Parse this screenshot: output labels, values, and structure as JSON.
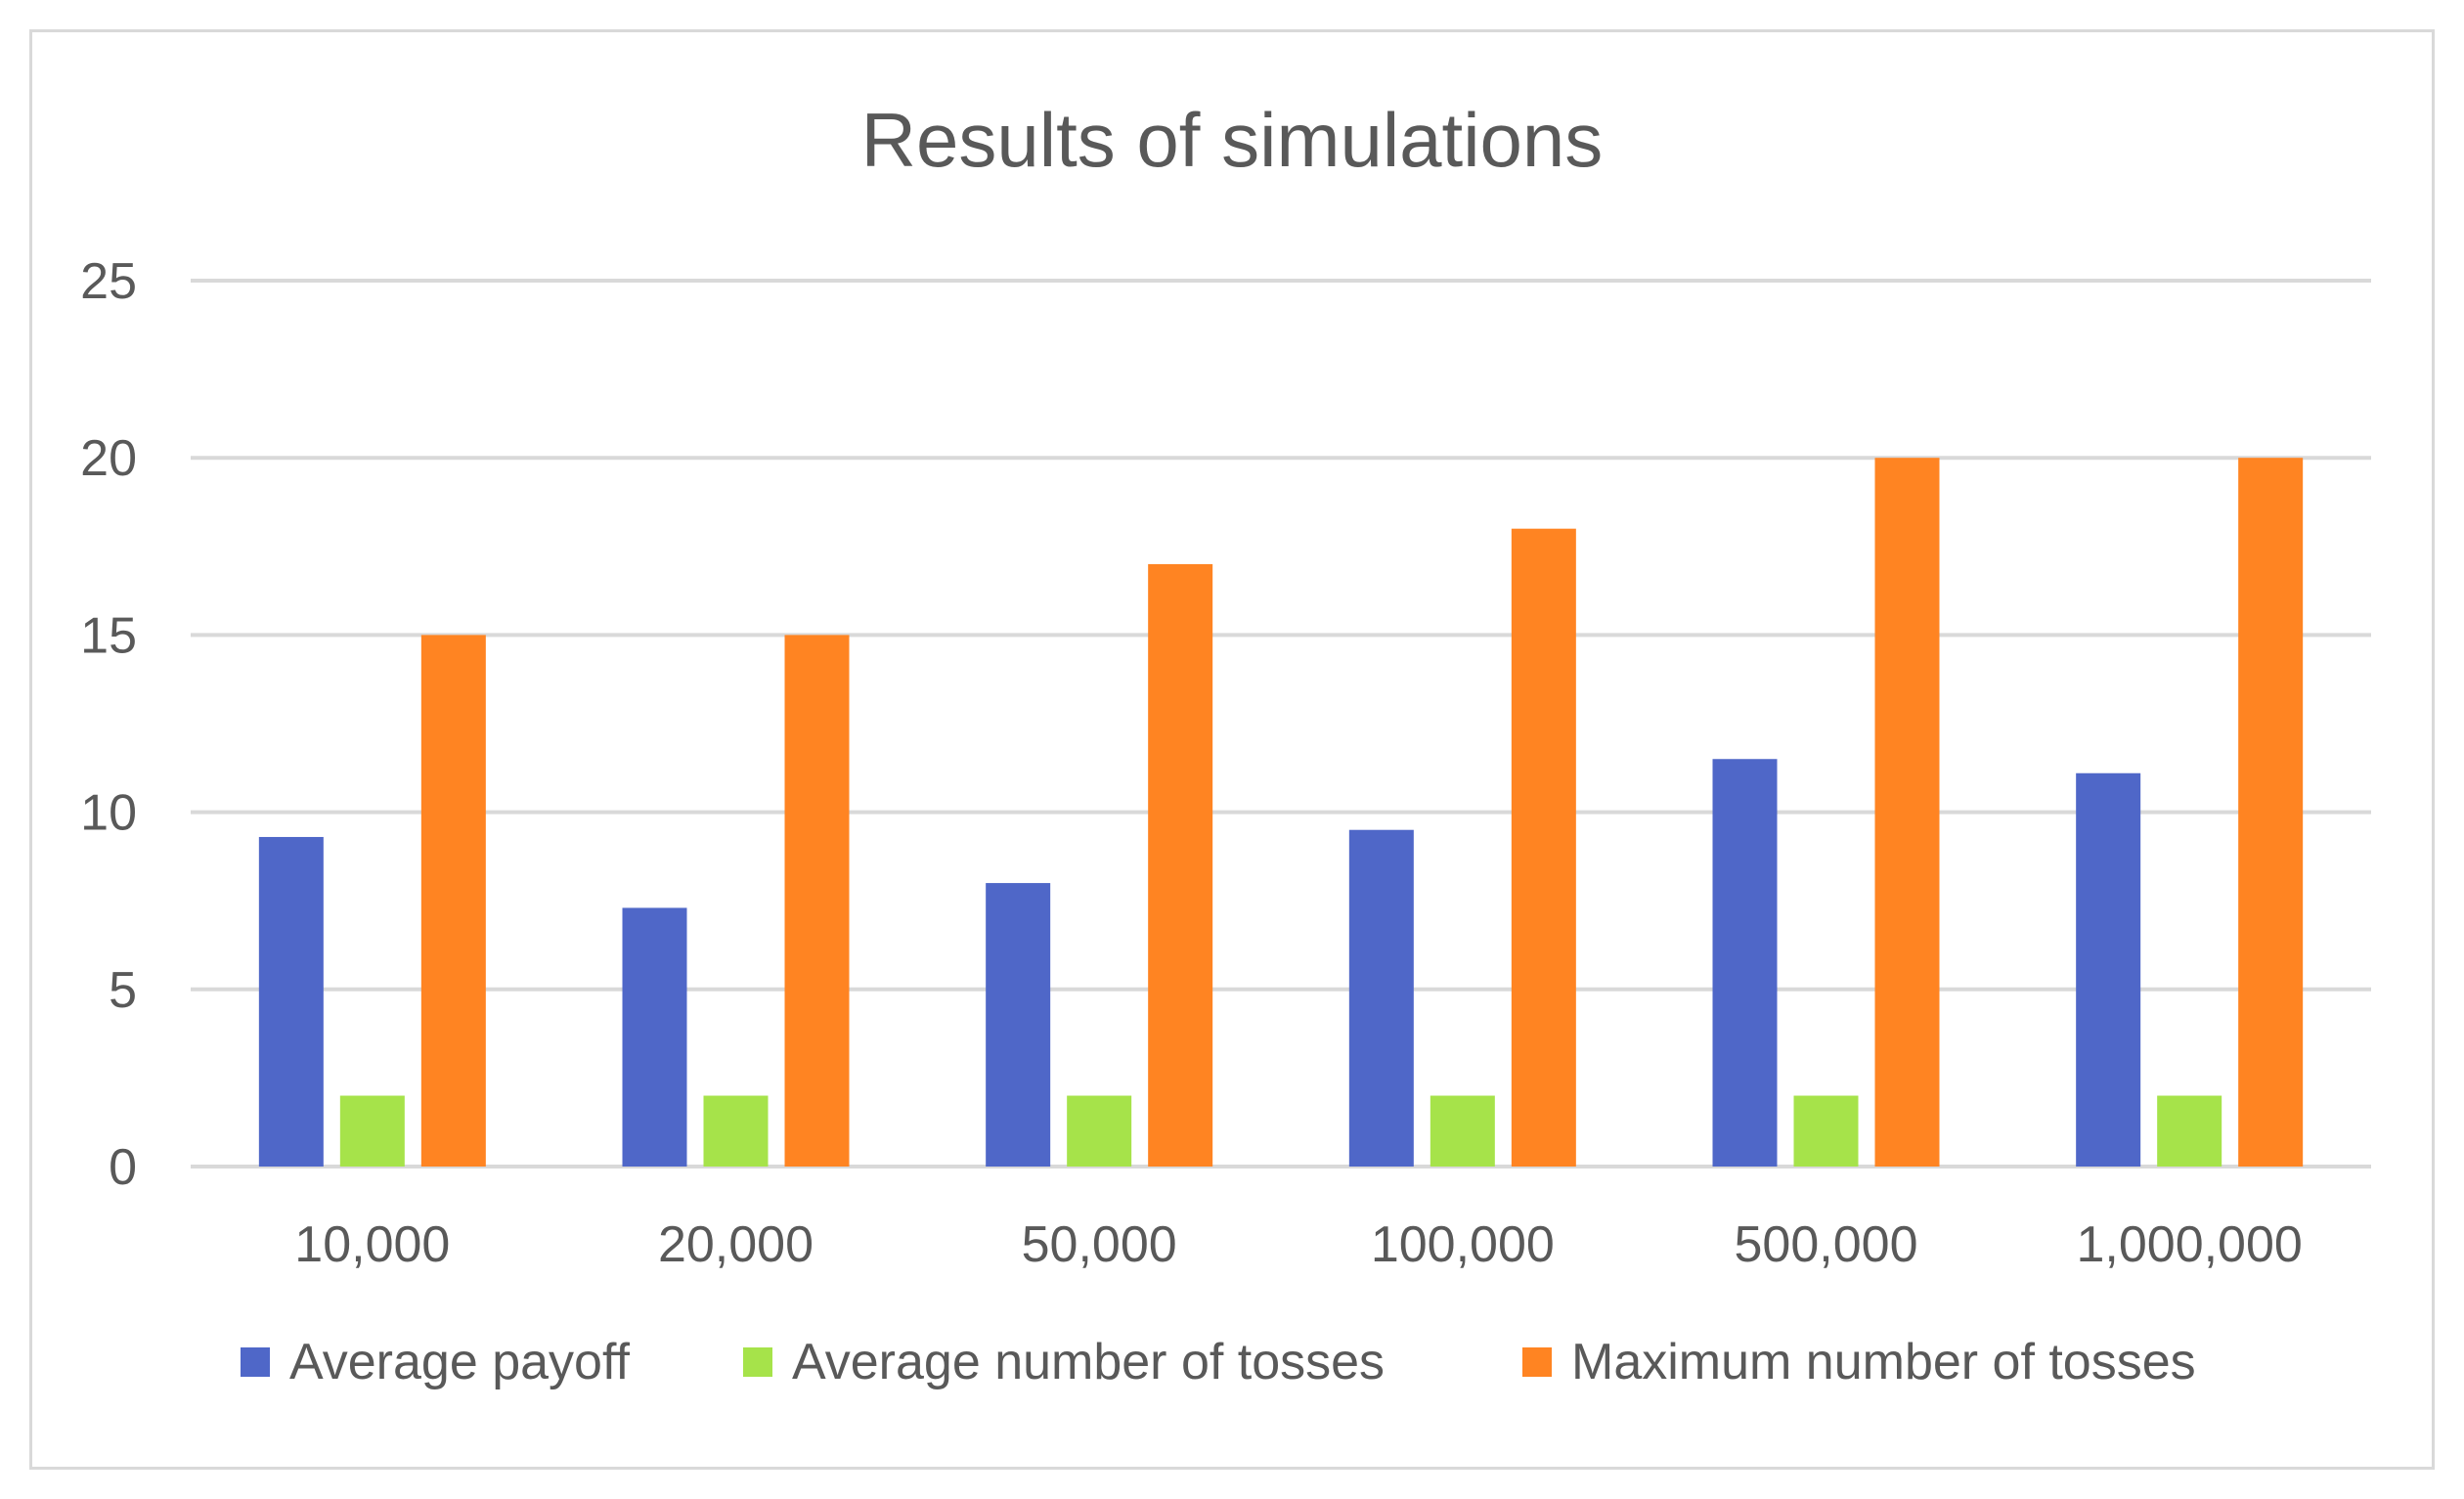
{
  "chart_data": {
    "type": "bar",
    "title": "Results of simulations",
    "xlabel": "",
    "ylabel": "",
    "categories": [
      "10,000",
      "20,000",
      "50,000",
      "100,000",
      "500,000",
      "1,000,000"
    ],
    "ylim": [
      0,
      25
    ],
    "yticks": [
      "0",
      "5",
      "10",
      "15",
      "20",
      "25"
    ],
    "grid": "horizontal",
    "legend_position": "bottom",
    "series": [
      {
        "name": "Average payoff",
        "color": "#4F67C8",
        "values": [
          9.3,
          7.3,
          8.0,
          9.5,
          11.5,
          11.1
        ]
      },
      {
        "name": "Average number of tosses",
        "color": "#A6E34A",
        "values": [
          2,
          2,
          2,
          2,
          2,
          2
        ]
      },
      {
        "name": "Maximum number of tosses",
        "color": "#FF8422",
        "values": [
          15,
          15,
          17,
          18,
          20,
          20
        ]
      }
    ]
  }
}
